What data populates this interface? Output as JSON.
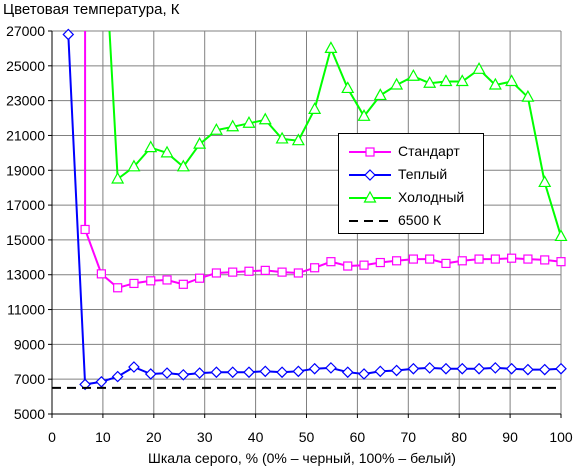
{
  "chart_data": {
    "type": "line",
    "title": "Цветовая температура, К",
    "xlabel": "Шкала серого, % (0% – черный, 100% – белый)",
    "ylabel": "",
    "xlim": [
      0,
      100
    ],
    "ylim": [
      5000,
      27000
    ],
    "x_ticks": [
      0,
      10,
      20,
      30,
      40,
      50,
      60,
      70,
      80,
      90,
      100
    ],
    "y_ticks": [
      5000,
      7000,
      9000,
      11000,
      13000,
      15000,
      17000,
      19000,
      21000,
      23000,
      25000,
      27000
    ],
    "x_tick_labels": [
      "0",
      "10",
      "20",
      "30",
      "40",
      "50",
      "60",
      "70",
      "80",
      "90",
      "100"
    ],
    "y_tick_labels": [
      "5000",
      "7000",
      "9000",
      "11000",
      "13000",
      "15000",
      "17000",
      "19000",
      "21000",
      "23000",
      "25000",
      "27000"
    ],
    "grid": true,
    "legend_position": "right",
    "series": [
      {
        "name": "Стандарт",
        "color": "#ff00ff",
        "marker": "square",
        "entry_above_top": 6.5,
        "x": [
          6.5,
          9.7,
          12.9,
          16.1,
          19.4,
          22.6,
          25.8,
          29.0,
          32.3,
          35.5,
          38.7,
          41.9,
          45.2,
          48.4,
          51.6,
          54.8,
          58.1,
          61.3,
          64.5,
          67.7,
          71.0,
          74.2,
          77.4,
          80.6,
          83.9,
          87.1,
          90.3,
          93.5,
          96.8,
          100
        ],
        "y": [
          15600,
          13050,
          12250,
          12500,
          12650,
          12700,
          12450,
          12800,
          13100,
          13150,
          13200,
          13250,
          13150,
          13100,
          13400,
          13750,
          13500,
          13550,
          13700,
          13800,
          13900,
          13900,
          13650,
          13800,
          13900,
          13900,
          13950,
          13900,
          13850,
          13750
        ]
      },
      {
        "name": "Теплый",
        "color": "#0000ff",
        "marker": "diamond",
        "entry_above_top": 3.2,
        "x": [
          3.2,
          6.5,
          9.7,
          12.9,
          16.1,
          19.4,
          22.6,
          25.8,
          29.0,
          32.3,
          35.5,
          38.7,
          41.9,
          45.2,
          48.4,
          51.6,
          54.8,
          58.1,
          61.3,
          64.5,
          67.7,
          71.0,
          74.2,
          77.4,
          80.6,
          83.9,
          87.1,
          90.3,
          93.5,
          96.8,
          100
        ],
        "y": [
          26800,
          6700,
          6850,
          7150,
          7700,
          7300,
          7350,
          7250,
          7350,
          7400,
          7400,
          7400,
          7450,
          7400,
          7450,
          7600,
          7650,
          7400,
          7300,
          7450,
          7500,
          7600,
          7650,
          7600,
          7600,
          7600,
          7650,
          7600,
          7550,
          7550,
          7600
        ]
      },
      {
        "name": "Холодный",
        "color": "#00ff00",
        "marker": "triangle",
        "entry_above_top": 11.3,
        "x": [
          12.9,
          16.1,
          19.4,
          22.6,
          25.8,
          29.0,
          32.3,
          35.5,
          38.7,
          41.9,
          45.2,
          48.4,
          51.6,
          54.8,
          58.1,
          61.3,
          64.5,
          67.7,
          71.0,
          74.2,
          77.4,
          80.6,
          83.9,
          87.1,
          90.3,
          93.5,
          96.8,
          100
        ],
        "y": [
          18500,
          19200,
          20300,
          20000,
          19200,
          20500,
          21300,
          21500,
          21700,
          21900,
          20800,
          20700,
          22500,
          26000,
          23700,
          22100,
          23300,
          23900,
          24400,
          24000,
          24100,
          24100,
          24800,
          23900,
          24100,
          23200,
          18300,
          15200
        ]
      },
      {
        "name": "6500 К",
        "color": "#000000",
        "marker": "none",
        "dash": true,
        "x": [
          0,
          100
        ],
        "y": [
          6500,
          6500
        ]
      }
    ]
  }
}
